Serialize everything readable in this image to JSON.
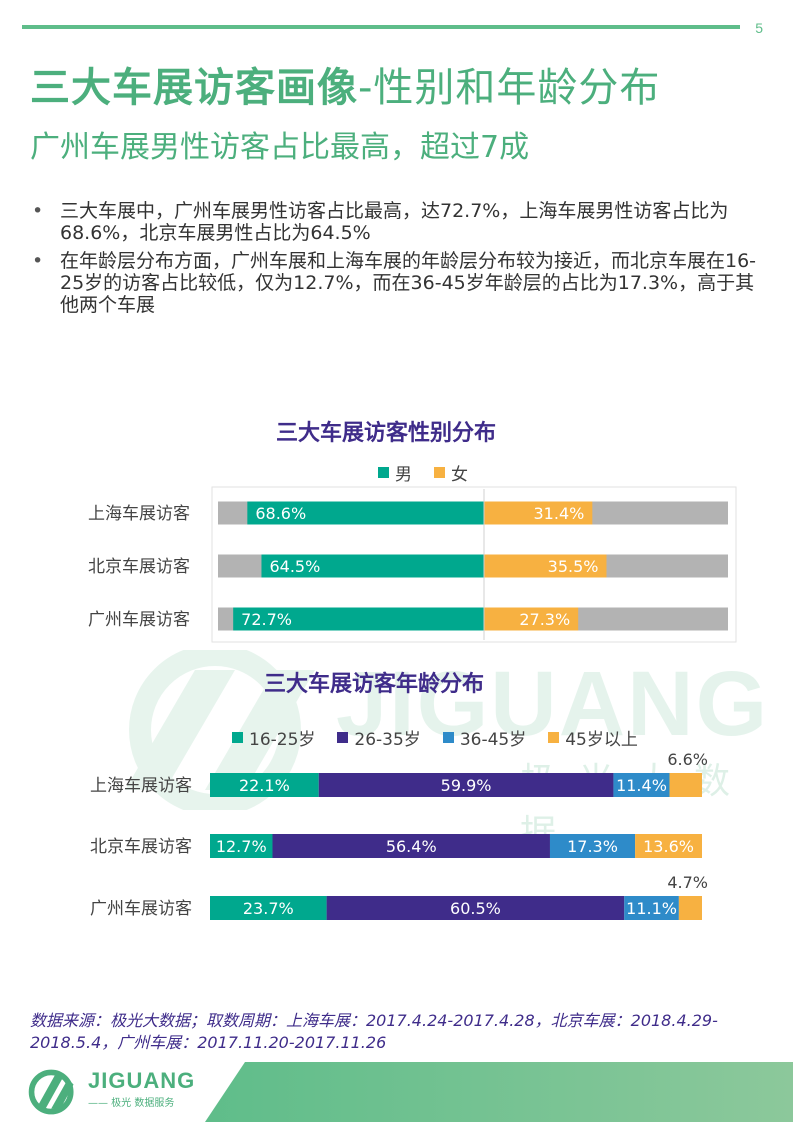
{
  "page_number": "5",
  "title_bold": "三大车展访客画像",
  "title_light": "-性别和年龄分布",
  "subtitle": "广州车展男性访客占比最高，超过7成",
  "bullets": [
    "三大车展中，广州车展男性访客占比最高，达72.7%，上海车展男性访客占比为68.6%，北京车展男性占比为64.5%",
    "在年龄层分布方面，广州车展和上海车展的年龄层分布较为接近，而北京车展在16-25岁的访客占比较低，仅为12.7%，而在36-45岁年龄层的占比为17.3%，高于其他两个车展"
  ],
  "watermark": {
    "en": "JIGUANG",
    "cn": "极光大数据"
  },
  "colors": {
    "green": "#00a88e",
    "orange": "#f7b141",
    "purple": "#3f2c8a",
    "blue": "#2e8bc9",
    "gray": "#b3b3b3",
    "brand": "#4caf7d"
  },
  "chart_data": [
    {
      "type": "bar",
      "orientation": "horizontal",
      "stacked": true,
      "title": "三大车展访客性别分布",
      "categories": [
        "上海车展访客",
        "北京车展访客",
        "广州车展访客"
      ],
      "series": [
        {
          "name": "男",
          "values": [
            68.6,
            64.5,
            72.7
          ],
          "labels": [
            "68.6%",
            "64.5%",
            "72.7%"
          ],
          "color": "#00a88e"
        },
        {
          "name": "女",
          "values": [
            31.4,
            35.5,
            27.3
          ],
          "labels": [
            "31.4%",
            "35.5%",
            "27.3%"
          ],
          "color": "#f7b141"
        }
      ],
      "legend_position": "top-center"
    },
    {
      "type": "bar",
      "orientation": "horizontal",
      "stacked": true,
      "title": "三大车展访客年龄分布",
      "categories": [
        "上海车展访客",
        "北京车展访客",
        "广州车展访客"
      ],
      "series": [
        {
          "name": "16-25岁",
          "values": [
            22.1,
            12.7,
            23.7
          ],
          "labels": [
            "22.1%",
            "12.7%",
            "23.7%"
          ],
          "color": "#00a88e"
        },
        {
          "name": "26-35岁",
          "values": [
            59.9,
            56.4,
            60.5
          ],
          "labels": [
            "59.9%",
            "56.4%",
            "60.5%"
          ],
          "color": "#3f2c8a"
        },
        {
          "name": "36-45岁",
          "values": [
            11.4,
            17.3,
            11.1
          ],
          "labels": [
            "11.4%",
            "17.3%",
            "11.1%"
          ],
          "color": "#2e8bc9"
        },
        {
          "name": "45岁以上",
          "values": [
            6.6,
            13.6,
            4.7
          ],
          "labels": [
            "6.6%",
            "13.6%",
            "4.7%"
          ],
          "color": "#f7b141"
        }
      ],
      "legend_position": "top-center"
    }
  ],
  "source": "数据来源：极光大数据；取数周期：上海车展：2017.4.24-2017.4.28，北京车展：2018.4.29-2018.5.4，广州车展：2017.11.20-2017.11.26",
  "footer": {
    "logo_text": "JIGUANG",
    "logo_sub": "—— 极光 数据服务"
  }
}
